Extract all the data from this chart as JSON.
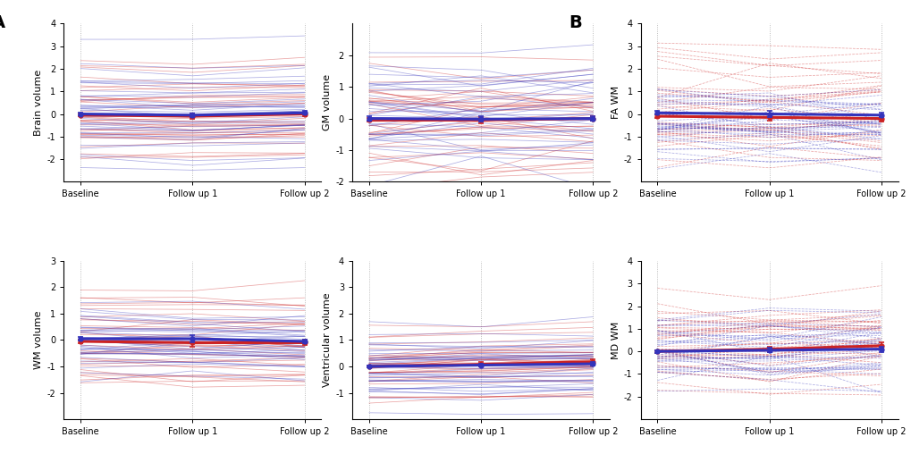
{
  "n_blue": 37,
  "n_red": 34,
  "timepoints": [
    0,
    1,
    2
  ],
  "xtick_labels": [
    "Baseline",
    "Follow up 1",
    "Follow up 2"
  ],
  "blue_color": "#3333bb",
  "red_color": "#cc2222",
  "blue_alpha": 0.4,
  "red_alpha": 0.4,
  "thick_lw": 2.2,
  "thin_lw": 0.55,
  "marker_size": 3.5,
  "subplots": [
    {
      "ylabel": "Brain volume",
      "ylim": [
        -3,
        4
      ],
      "yticks": [
        -2,
        -1,
        0,
        1,
        2,
        3,
        4
      ],
      "blue_means": [
        0.0,
        -0.05,
        0.05
      ],
      "red_means": [
        -0.05,
        -0.1,
        0.0
      ],
      "blue_se": [
        0.06,
        0.08,
        0.08
      ],
      "red_se": [
        0.06,
        0.12,
        0.08
      ],
      "blue_spread": 1.05,
      "red_spread": 1.05,
      "blue_time_noise": 0.12,
      "red_time_noise": 0.12,
      "linestyle": "-"
    },
    {
      "ylabel": "GM volume",
      "ylim": [
        -2,
        3
      ],
      "yticks": [
        -2,
        -1,
        0,
        1,
        2
      ],
      "blue_means": [
        0.0,
        -0.02,
        0.0
      ],
      "red_means": [
        -0.05,
        -0.05,
        0.0
      ],
      "blue_se": [
        0.06,
        0.08,
        0.08
      ],
      "red_se": [
        0.06,
        0.1,
        0.08
      ],
      "blue_spread": 0.95,
      "red_spread": 0.95,
      "blue_time_noise": 0.25,
      "red_time_noise": 0.25,
      "linestyle": "-"
    },
    {
      "ylabel": "WM volume",
      "ylim": [
        -3,
        3
      ],
      "yticks": [
        -2,
        -1,
        0,
        1,
        2,
        3
      ],
      "blue_means": [
        0.05,
        0.05,
        -0.05
      ],
      "red_means": [
        -0.05,
        -0.1,
        -0.1
      ],
      "blue_se": [
        0.06,
        0.12,
        0.08
      ],
      "red_se": [
        0.06,
        0.15,
        0.1
      ],
      "blue_spread": 0.95,
      "red_spread": 0.95,
      "blue_time_noise": 0.15,
      "red_time_noise": 0.15,
      "linestyle": "-"
    },
    {
      "ylabel": "Ventricular volume",
      "ylim": [
        -2,
        4
      ],
      "yticks": [
        -1,
        0,
        1,
        2,
        3,
        4
      ],
      "blue_means": [
        0.0,
        0.05,
        0.1
      ],
      "red_means": [
        0.0,
        0.08,
        0.18
      ],
      "blue_se": [
        0.04,
        0.06,
        0.08
      ],
      "red_se": [
        0.04,
        0.08,
        0.1
      ],
      "blue_spread": 0.7,
      "red_spread": 0.7,
      "blue_time_noise": 0.1,
      "red_time_noise": 0.1,
      "linestyle": "-"
    },
    {
      "ylabel": "FA WM",
      "ylim": [
        -3,
        4
      ],
      "yticks": [
        -2,
        -1,
        0,
        1,
        2,
        3,
        4
      ],
      "blue_means": [
        0.05,
        0.0,
        -0.05
      ],
      "red_means": [
        -0.1,
        -0.15,
        -0.2
      ],
      "blue_se": [
        0.08,
        0.12,
        0.1
      ],
      "red_se": [
        0.08,
        0.15,
        0.12
      ],
      "blue_spread": 1.0,
      "red_spread": 1.0,
      "blue_time_noise": 0.35,
      "red_time_noise": 0.35,
      "linestyle": "--"
    },
    {
      "ylabel": "MD WM",
      "ylim": [
        -3,
        4
      ],
      "yticks": [
        -2,
        -1,
        0,
        1,
        2,
        3,
        4
      ],
      "blue_means": [
        0.0,
        0.05,
        0.1
      ],
      "red_means": [
        0.0,
        0.1,
        0.25
      ],
      "blue_se": [
        0.06,
        0.1,
        0.12
      ],
      "red_se": [
        0.06,
        0.12,
        0.15
      ],
      "blue_spread": 1.0,
      "red_spread": 1.0,
      "blue_time_noise": 0.3,
      "red_time_noise": 0.3,
      "linestyle": "--"
    }
  ],
  "panel_label_fontsize": 14,
  "axis_fontsize": 8,
  "tick_fontsize": 7,
  "background_color": "#ffffff",
  "vline_color": "#888888",
  "vline_lw": 0.6,
  "vline_style": ":"
}
